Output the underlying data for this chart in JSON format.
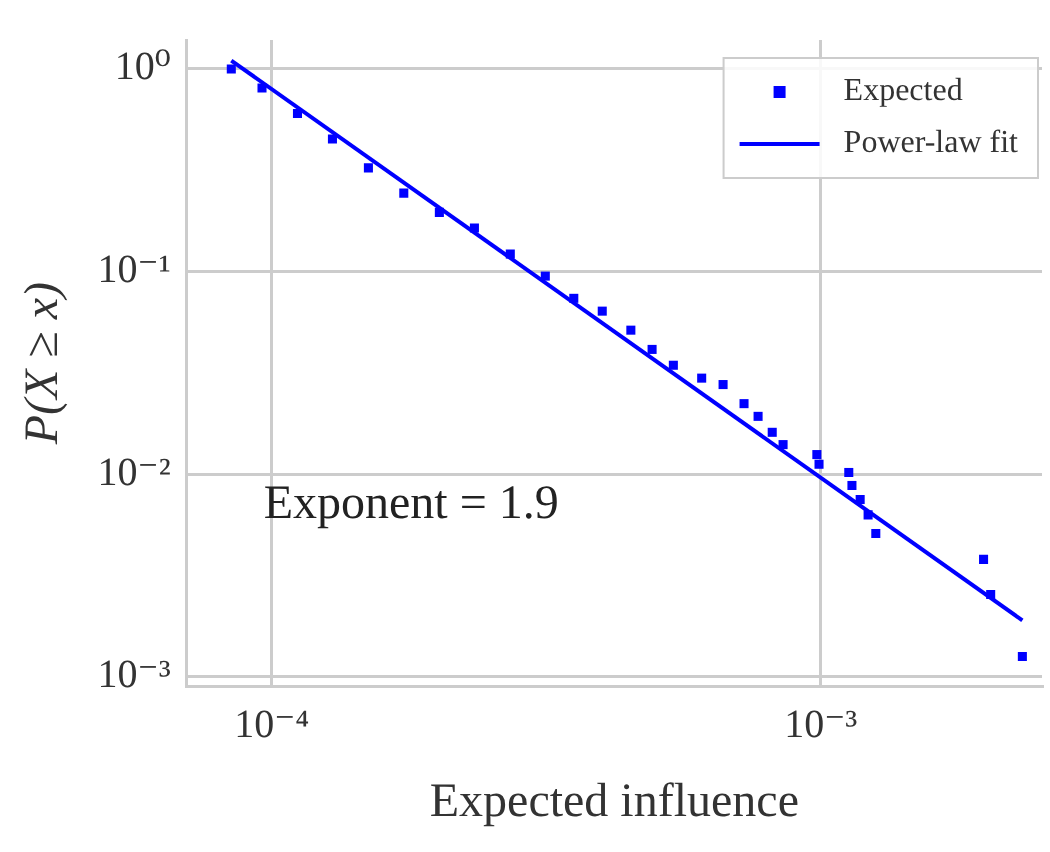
{
  "chart_data": {
    "type": "scatter",
    "xlabel": "Expected influence",
    "ylabel": "P(X ≥ x)",
    "log": "xy",
    "grid": true,
    "legend": "top right",
    "xlim": [
      7.2e-05,
      0.00253
    ],
    "ylim": [
      0.000897,
      1.39
    ],
    "xticks": [
      {
        "value": 0.0001,
        "label": "10⁻⁴"
      },
      {
        "value": 0.001,
        "label": "10⁻³"
      }
    ],
    "yticks": [
      {
        "value": 0.001,
        "label": "10⁻³"
      },
      {
        "value": 0.01,
        "label": "10⁻²"
      },
      {
        "value": 0.1,
        "label": "10⁻¹"
      },
      {
        "value": 1,
        "label": "10⁰"
      }
    ],
    "annotations": [
      "Exponent = 1.9"
    ],
    "series": [
      {
        "name": "Expected",
        "marker": "square",
        "color": "#0000ff",
        "x": [
          8.44e-05,
          9.6e-05,
          0.0001114,
          0.000129,
          0.00015,
          0.000174,
          0.000202,
          0.000234,
          0.000272,
          0.000315,
          0.000355,
          0.0004,
          0.000451,
          0.000493,
          0.000539,
          0.000607,
          0.000664,
          0.000725,
          0.000769,
          0.000816,
          0.000854,
          0.000984,
          0.000993,
          0.001125,
          0.00114,
          0.00118,
          0.00122,
          0.00126,
          0.00198,
          0.00204,
          0.00233
        ],
        "values": [
          1.0,
          0.805,
          0.603,
          0.451,
          0.325,
          0.244,
          0.196,
          0.164,
          0.122,
          0.095,
          0.0738,
          0.0638,
          0.0514,
          0.0413,
          0.0345,
          0.0298,
          0.0277,
          0.0223,
          0.0193,
          0.0161,
          0.014,
          0.0125,
          0.0112,
          0.0102,
          0.0088,
          0.0075,
          0.0063,
          0.0051,
          0.0038,
          0.00255,
          0.00126
        ]
      },
      {
        "name": "Power-law fit",
        "type": "line",
        "marker": "none",
        "line_style": "solid",
        "color": "#0000ff",
        "x": [
          8.44e-05,
          0.00233
        ],
        "values": [
          1.1,
          0.0019
        ]
      }
    ]
  }
}
